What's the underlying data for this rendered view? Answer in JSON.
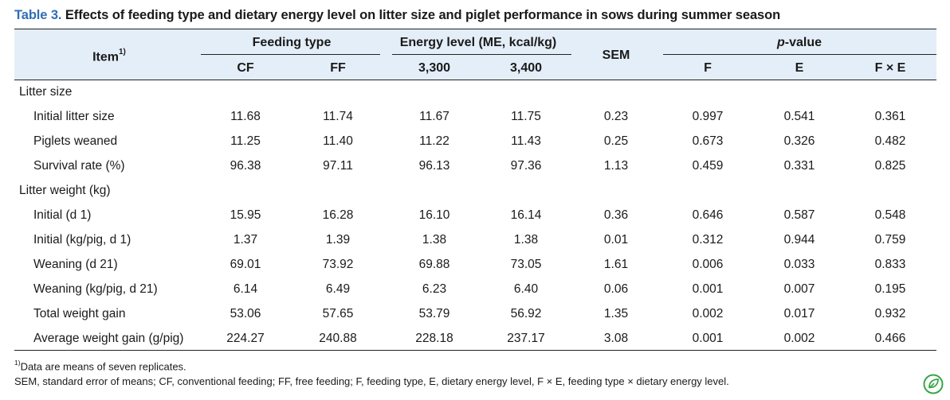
{
  "caption": {
    "label": "Table 3.",
    "text": " Effects of feeding type and dietary energy level on litter size and piglet performance in sows during summer season"
  },
  "header": {
    "item": "Item",
    "item_sup": "1)",
    "group_feeding": "Feeding type",
    "group_energy": "Energy level (ME, kcal/kg)",
    "sem": "SEM",
    "group_p": "p-value",
    "cols": [
      "CF",
      "FF",
      "3,300",
      "3,400",
      "F",
      "E",
      "F × E"
    ]
  },
  "sections": [
    {
      "title": "Litter size",
      "rows": [
        {
          "label": "Initial litter size",
          "values": [
            "11.68",
            "11.74",
            "11.67",
            "11.75",
            "0.23",
            "0.997",
            "0.541",
            "0.361"
          ]
        },
        {
          "label": "Piglets weaned",
          "values": [
            "11.25",
            "11.40",
            "11.22",
            "11.43",
            "0.25",
            "0.673",
            "0.326",
            "0.482"
          ]
        },
        {
          "label": "Survival rate (%)",
          "values": [
            "96.38",
            "97.11",
            "96.13",
            "97.36",
            "1.13",
            "0.459",
            "0.331",
            "0.825"
          ]
        }
      ]
    },
    {
      "title": "Litter weight (kg)",
      "rows": [
        {
          "label": "Initial (d 1)",
          "values": [
            "15.95",
            "16.28",
            "16.10",
            "16.14",
            "0.36",
            "0.646",
            "0.587",
            "0.548"
          ]
        },
        {
          "label": "Initial (kg/pig, d 1)",
          "values": [
            "1.37",
            "1.39",
            "1.38",
            "1.38",
            "0.01",
            "0.312",
            "0.944",
            "0.759"
          ]
        },
        {
          "label": "Weaning (d 21)",
          "values": [
            "69.01",
            "73.92",
            "69.88",
            "73.05",
            "1.61",
            "0.006",
            "0.033",
            "0.833"
          ]
        },
        {
          "label": "Weaning (kg/pig, d 21)",
          "values": [
            "6.14",
            "6.49",
            "6.23",
            "6.40",
            "0.06",
            "0.001",
            "0.007",
            "0.195"
          ]
        },
        {
          "label": "Total weight gain",
          "values": [
            "53.06",
            "57.65",
            "53.79",
            "56.92",
            "1.35",
            "0.002",
            "0.017",
            "0.932"
          ]
        },
        {
          "label": "Average weight gain (g/pig)",
          "values": [
            "224.27",
            "240.88",
            "228.18",
            "237.17",
            "3.08",
            "0.001",
            "0.002",
            "0.466"
          ]
        }
      ]
    }
  ],
  "footnotes": {
    "note1_sup": "1)",
    "note1": "Data are means of seven replicates.",
    "note2": "SEM, standard error of means; CF, conventional feeding; FF, free feeding; F, feeding type, E, dietary energy level, F × E, feeding type × dietary energy level."
  },
  "colors": {
    "caption_label": "#2e6fb5",
    "header_background": "#e4eef8",
    "logo": "#3aa54a"
  },
  "logo_icon": "leaf-icon"
}
